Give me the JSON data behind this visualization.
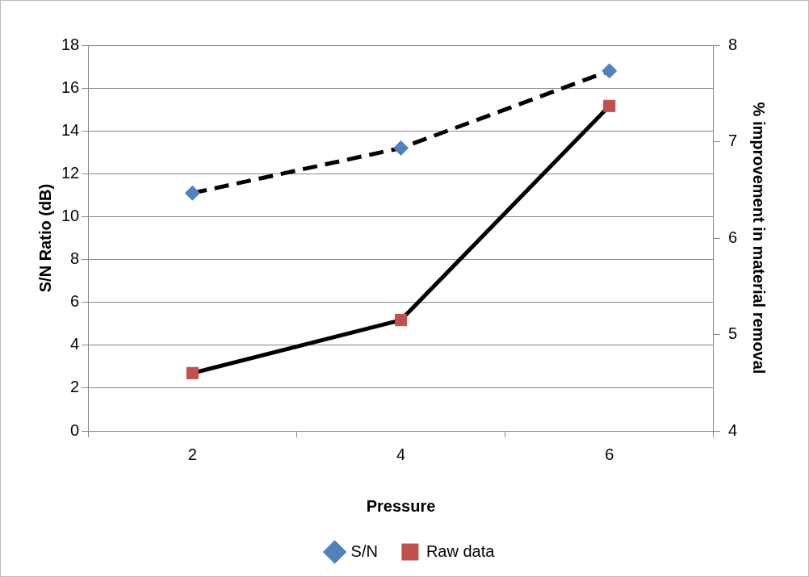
{
  "chart_data": {
    "type": "line",
    "xlabel": "Pressure",
    "ylabel": "S/N Ratio (dB)",
    "y2label": "% improvement in material removal",
    "categories": [
      "2",
      "4",
      "6"
    ],
    "series": [
      {
        "name": "S/N",
        "color": "#4f81bd",
        "values": [
          11.1,
          13.2,
          16.8
        ],
        "marker": "diamond",
        "line_style": "dashed"
      },
      {
        "name": "Raw data",
        "color": "#c0504d",
        "values": [
          4.6,
          5.15,
          7.37
        ],
        "axis": "y2",
        "marker": "square",
        "line_style": "solid"
      }
    ],
    "ylim": [
      0,
      18
    ],
    "yticks": [
      0,
      2,
      4,
      6,
      8,
      10,
      12,
      14,
      16,
      18
    ],
    "y2lim": [
      4,
      8
    ],
    "y2ticks": [
      4,
      5,
      6,
      7,
      8
    ],
    "grid": "y",
    "legend": "bottom"
  }
}
